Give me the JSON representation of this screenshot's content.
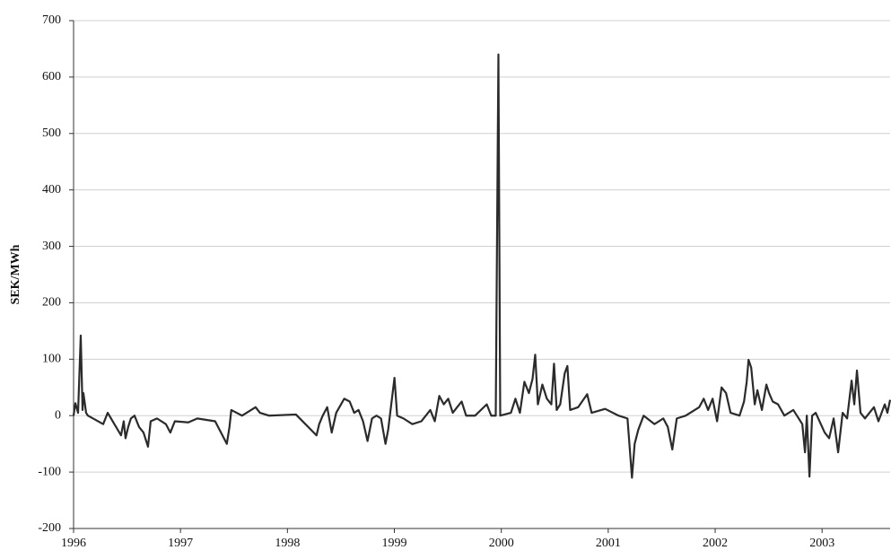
{
  "chart_data": {
    "type": "line",
    "y_label": "SEK/MWh",
    "color": "#2b2b2b",
    "grid": true,
    "xlim": [
      1996,
      2003.636
    ],
    "xticks": [
      1996,
      1997,
      1998,
      1999,
      2000,
      2001,
      2002,
      2003
    ],
    "ylim": [
      -200,
      700
    ],
    "yticks": [
      -200,
      -100,
      0,
      100,
      200,
      300,
      400,
      500,
      600,
      700
    ],
    "x": [
      1996.0,
      1996.017,
      1996.042,
      1996.067,
      1996.084,
      1996.092,
      1996.117,
      1996.134,
      1996.277,
      1996.319,
      1996.444,
      1996.469,
      1996.486,
      1996.511,
      1996.536,
      1996.57,
      1996.612,
      1996.654,
      1996.696,
      1996.721,
      1996.78,
      1996.863,
      1996.905,
      1996.947,
      1997.073,
      1997.157,
      1997.324,
      1997.433,
      1997.458,
      1997.475,
      1997.576,
      1997.66,
      1997.702,
      1997.743,
      1997.827,
      1998.079,
      1998.272,
      1998.297,
      1998.33,
      1998.372,
      1998.414,
      1998.456,
      1998.531,
      1998.582,
      1998.624,
      1998.665,
      1998.707,
      1998.749,
      1998.791,
      1998.833,
      1998.875,
      1998.917,
      1998.942,
      1999.001,
      1999.026,
      1999.085,
      1999.168,
      1999.252,
      1999.336,
      1999.378,
      1999.42,
      1999.462,
      1999.504,
      1999.546,
      1999.587,
      1999.629,
      1999.671,
      1999.755,
      1999.864,
      1999.906,
      1999.948,
      1999.973,
      1999.99,
      2000.09,
      2000.132,
      2000.174,
      2000.216,
      2000.258,
      2000.292,
      2000.317,
      2000.342,
      2000.384,
      2000.426,
      2000.468,
      2000.493,
      2000.518,
      2000.551,
      2000.593,
      2000.618,
      2000.644,
      2000.719,
      2000.803,
      2000.845,
      2000.971,
      2001.096,
      2001.18,
      2001.222,
      2001.247,
      2001.281,
      2001.331,
      2001.432,
      2001.515,
      2001.557,
      2001.599,
      2001.641,
      2001.725,
      2001.809,
      2001.851,
      2001.893,
      2001.934,
      2001.976,
      2002.018,
      2002.06,
      2002.102,
      2002.144,
      2002.228,
      2002.27,
      2002.295,
      2002.312,
      2002.337,
      2002.37,
      2002.395,
      2002.437,
      2002.479,
      2002.504,
      2002.538,
      2002.588,
      2002.647,
      2002.731,
      2002.815,
      2002.84,
      2002.857,
      2002.882,
      2002.907,
      2002.94,
      2003.024,
      2003.066,
      2003.108,
      2003.15,
      2003.192,
      2003.234,
      2003.276,
      2003.301,
      2003.326,
      2003.359,
      2003.401,
      2003.485,
      2003.527,
      2003.586,
      2003.611,
      2003.636
    ],
    "values": [
      0,
      22,
      5,
      142,
      10,
      40,
      5,
      0,
      -15,
      5,
      -35,
      -10,
      -40,
      -20,
      -5,
      0,
      -20,
      -30,
      -55,
      -10,
      -5,
      -15,
      -30,
      -10,
      -12,
      -5,
      -10,
      -50,
      -20,
      10,
      0,
      10,
      15,
      5,
      0,
      2,
      -35,
      -15,
      0,
      15,
      -30,
      5,
      30,
      25,
      5,
      10,
      -10,
      -45,
      -5,
      0,
      -5,
      -50,
      -25,
      67,
      0,
      -5,
      -15,
      -10,
      10,
      -10,
      35,
      20,
      30,
      5,
      15,
      25,
      0,
      0,
      20,
      0,
      0,
      640,
      0,
      5,
      30,
      5,
      60,
      40,
      65,
      108,
      20,
      55,
      30,
      20,
      92,
      10,
      20,
      75,
      88,
      10,
      15,
      38,
      5,
      12,
      0,
      -5,
      -110,
      -50,
      -25,
      0,
      -15,
      -5,
      -20,
      -60,
      -5,
      0,
      10,
      15,
      30,
      10,
      30,
      -10,
      50,
      40,
      5,
      0,
      25,
      60,
      99,
      85,
      20,
      45,
      10,
      55,
      40,
      25,
      20,
      0,
      10,
      -15,
      -65,
      0,
      -108,
      0,
      5,
      -30,
      -40,
      -5,
      -65,
      5,
      -5,
      62,
      20,
      80,
      5,
      -5,
      15,
      -10,
      20,
      5,
      28
    ]
  }
}
